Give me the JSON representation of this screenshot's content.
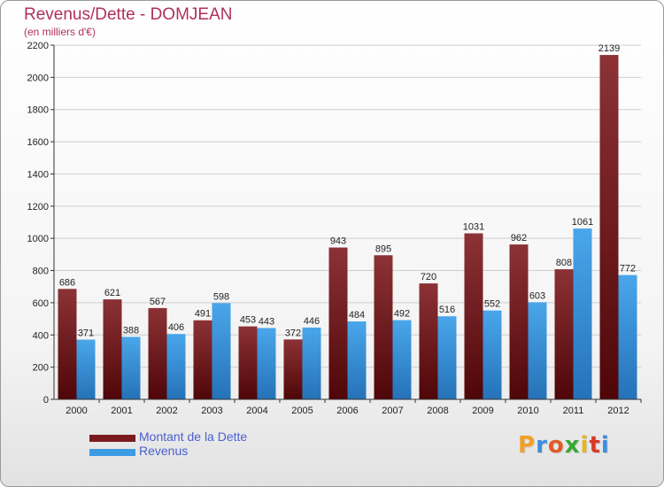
{
  "chart_data": {
    "type": "bar",
    "title": "Revenus/Dette - DOMJEAN",
    "subtitle": "(en milliers d'€)",
    "xlabel": "",
    "ylabel": "",
    "ylim": [
      0,
      2200
    ],
    "yticks": [
      0,
      200,
      400,
      600,
      800,
      1000,
      1200,
      1400,
      1600,
      1800,
      2000,
      2200
    ],
    "grid": true,
    "legend_position": "bottom-left",
    "categories": [
      "2000",
      "2001",
      "2002",
      "2003",
      "2004",
      "2005",
      "2006",
      "2007",
      "2008",
      "2009",
      "2010",
      "2011",
      "2012"
    ],
    "series": [
      {
        "name": "Montant de la Dette",
        "color": "#7b1a1e",
        "values": [
          686,
          621,
          567,
          491,
          453,
          372,
          943,
          895,
          720,
          1031,
          962,
          808,
          2139
        ]
      },
      {
        "name": "Revenus",
        "color": "#3d9be3",
        "values": [
          371,
          388,
          406,
          598,
          443,
          446,
          484,
          492,
          516,
          552,
          603,
          1061,
          772
        ]
      }
    ]
  },
  "branding": {
    "logo_letters": [
      "P",
      "r",
      "o",
      "x",
      "i",
      "t",
      "i"
    ],
    "logo_colors": [
      "#f2a023",
      "#3a8ee0",
      "#e05a28",
      "#3aa835",
      "#e8b520",
      "#d83a2a",
      "#3a8ee0"
    ]
  }
}
